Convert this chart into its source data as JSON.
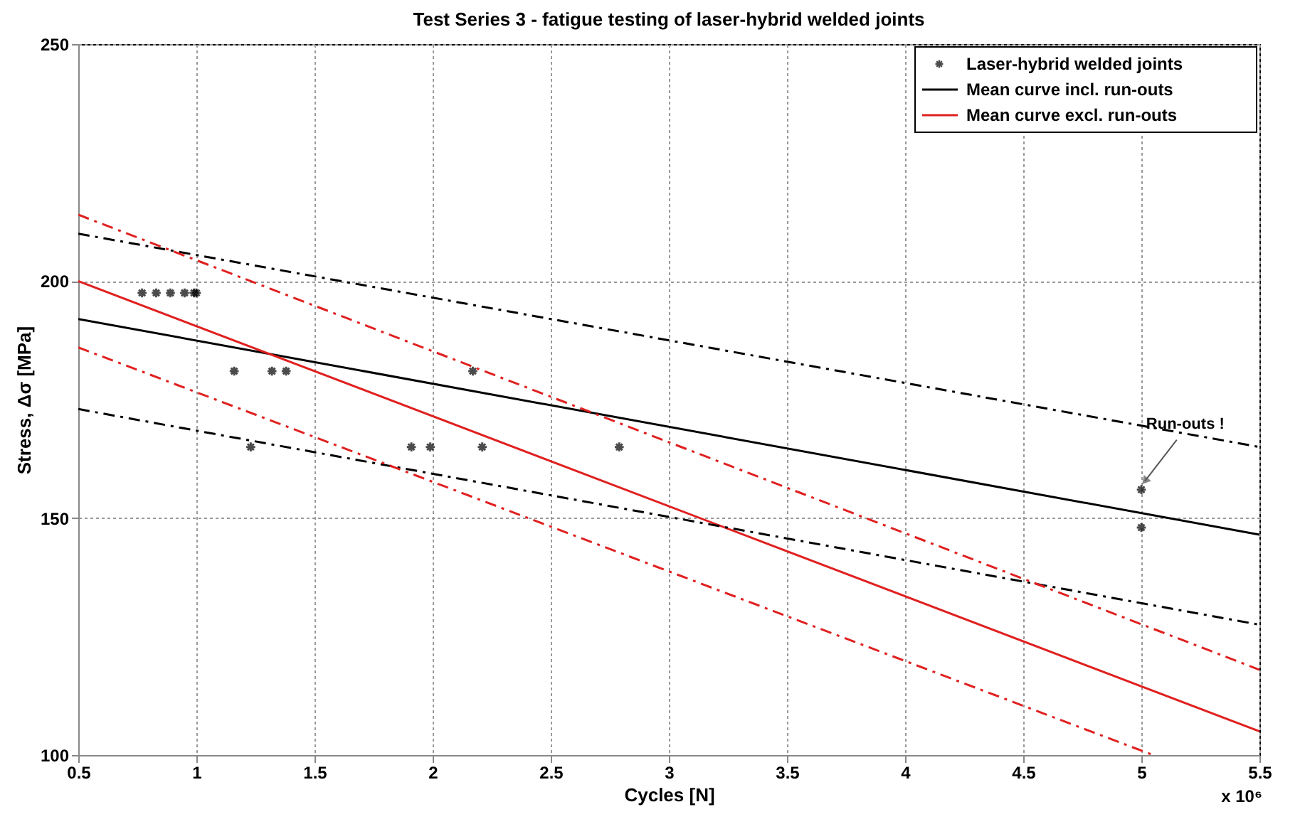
{
  "chart_data": {
    "type": "scatter",
    "title": "Test Series 3 - fatigue testing of laser-hybrid welded joints",
    "xlabel": "Cycles [N]",
    "ylabel": "Stress, Δσ [MPa]",
    "xlim": [
      0.5,
      5.5
    ],
    "xticks": [
      0.5,
      1,
      1.5,
      2,
      2.5,
      3,
      3.5,
      4,
      4.5,
      5,
      5.5
    ],
    "ylim": [
      100,
      250
    ],
    "yticks": [
      100,
      150,
      200,
      250
    ],
    "grid": true,
    "legend": "top right",
    "annotations": [
      "x 10⁶",
      {
        "text": "Run-outs !",
        "x": 5.0,
        "y": 156
      }
    ],
    "series": [
      {
        "name": "Laser-hybrid welded joints",
        "marker": "cross",
        "color": "#000000",
        "x": [
          0.77,
          0.83,
          0.89,
          0.95,
          0.99,
          1.0,
          1.16,
          1.32,
          1.38,
          2.17,
          1.23,
          1.91,
          1.99,
          2.21,
          2.79,
          5.0,
          5.0
        ],
        "values": [
          197.5,
          197.5,
          197.5,
          197.5,
          197.5,
          197.5,
          181,
          181,
          181,
          181,
          165,
          165,
          165,
          165,
          165,
          156,
          148
        ]
      },
      {
        "name": "Mean curve incl. run-outs",
        "type": "line",
        "line_style": "solid",
        "marker": "none",
        "color": "#000000",
        "x": [
          0.5,
          5.5
        ],
        "values": [
          192,
          146.5
        ]
      },
      {
        "name": "Mean curve excl. run-outs",
        "type": "line",
        "line_style": "solid",
        "marker": "none",
        "color": "#e02020",
        "x": [
          0.5,
          5.5
        ],
        "values": [
          200,
          105
        ]
      },
      {
        "type": "line",
        "line_style": "dashed",
        "marker": "none",
        "color": "#000000",
        "x": [
          0.5,
          5.5
        ],
        "values": [
          210,
          165
        ]
      },
      {
        "type": "line",
        "line_style": "dashed",
        "marker": "none",
        "color": "#000000",
        "x": [
          0.5,
          5.5
        ],
        "values": [
          173,
          127.5
        ]
      },
      {
        "type": "line",
        "line_style": "dashed",
        "marker": "none",
        "color": "#e02020",
        "x": [
          0.5,
          5.5
        ],
        "values": [
          214,
          118
        ]
      },
      {
        "type": "line",
        "line_style": "dashed",
        "marker": "none",
        "color": "#e02020",
        "x": [
          0.5,
          5.05
        ],
        "values": [
          186,
          100
        ]
      }
    ]
  }
}
